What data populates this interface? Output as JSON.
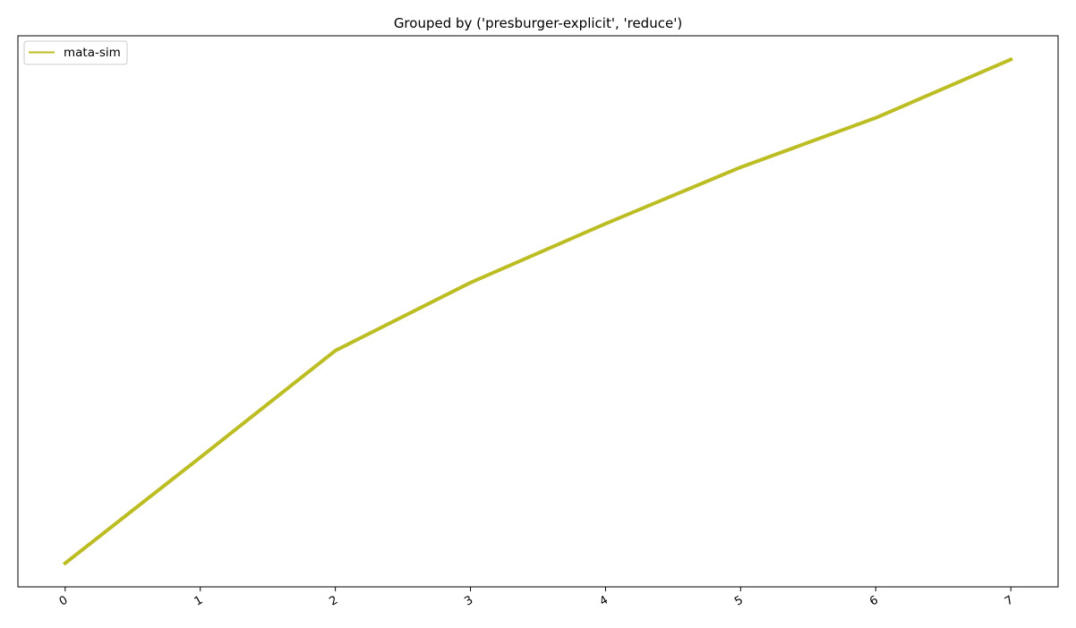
{
  "chart_data": {
    "type": "line",
    "title": "Grouped by ('presburger-explicit', 'reduce')",
    "xlabel": "",
    "ylabel": "",
    "x": [
      0,
      1,
      2,
      3,
      4,
      5,
      6,
      7
    ],
    "x_tick_labels": [
      "0",
      "1",
      "2",
      "3",
      "4",
      "5",
      "6",
      "7"
    ],
    "xlim": [
      -0.35,
      7.35
    ],
    "ylim": [
      -0.047,
      1.047
    ],
    "y_ticks_visible": false,
    "grid": false,
    "legend_position": "top-left",
    "series": [
      {
        "name": "mata-sim",
        "color": "#bcbd22",
        "values": [
          0.0,
          0.21,
          0.422,
          0.557,
          0.674,
          0.786,
          0.884,
          1.0
        ]
      }
    ]
  }
}
